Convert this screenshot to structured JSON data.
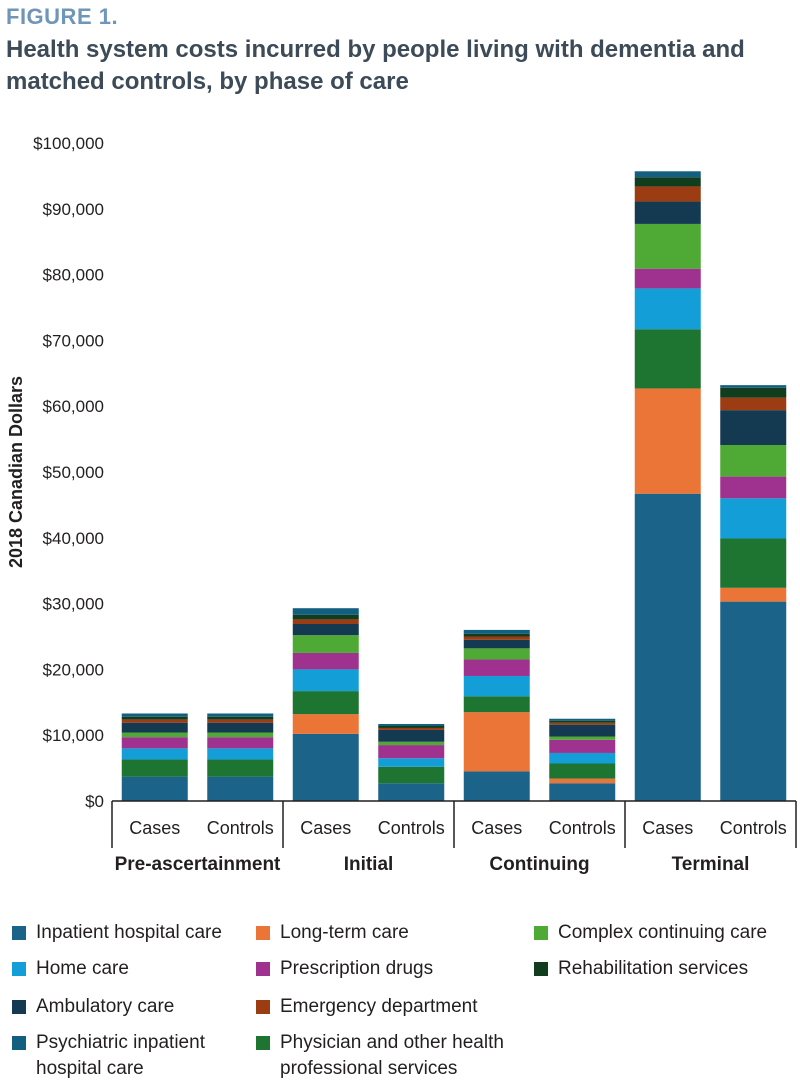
{
  "figure_label": "FIGURE 1.",
  "figure_title": "Health system costs incurred by people living with dementia and matched controls, by phase of care",
  "chart_data": {
    "type": "bar",
    "stacked": true,
    "ylabel": "2018 Canadian Dollars",
    "ylim": [
      0,
      100000
    ],
    "yticks": [
      {
        "value": 0,
        "label": "$0"
      },
      {
        "value": 10000,
        "label": "$10,000"
      },
      {
        "value": 20000,
        "label": "$20,000"
      },
      {
        "value": 30000,
        "label": "$30,000"
      },
      {
        "value": 40000,
        "label": "$40,000"
      },
      {
        "value": 50000,
        "label": "$50,000"
      },
      {
        "value": 60000,
        "label": "$60,000"
      },
      {
        "value": 70000,
        "label": "$70,000"
      },
      {
        "value": 80000,
        "label": "$80,000"
      },
      {
        "value": 90000,
        "label": "$90,000"
      },
      {
        "value": 100000,
        "label": "$100,000"
      }
    ],
    "groups": [
      {
        "name": "Pre-ascertainment",
        "categories": [
          "Cases",
          "Controls"
        ]
      },
      {
        "name": "Initial",
        "categories": [
          "Cases",
          "Controls"
        ]
      },
      {
        "name": "Continuing",
        "categories": [
          "Cases",
          "Controls"
        ]
      },
      {
        "name": "Terminal",
        "categories": [
          "Cases",
          "Controls"
        ]
      }
    ],
    "series": [
      {
        "name": "Inpatient hospital care",
        "color": "#1b6388",
        "values": [
          3700,
          3700,
          10200,
          2700,
          4500,
          2700,
          46700,
          30300
        ]
      },
      {
        "name": "Long-term care",
        "color": "#ea7536",
        "values": [
          0,
          0,
          3000,
          0,
          9000,
          700,
          16000,
          2100
        ]
      },
      {
        "name": "Physician and other health professional services",
        "color": "#1e7431",
        "values": [
          2600,
          2600,
          3500,
          2500,
          2400,
          2300,
          9000,
          7500
        ]
      },
      {
        "name": "Home care",
        "color": "#139ed8",
        "values": [
          1700,
          1700,
          3300,
          1300,
          3100,
          1600,
          6200,
          6100
        ]
      },
      {
        "name": "Prescription drugs",
        "color": "#a0328f",
        "values": [
          1700,
          1700,
          2500,
          2000,
          2500,
          2000,
          3000,
          3300
        ]
      },
      {
        "name": "Complex continuing care",
        "color": "#4fa935",
        "values": [
          700,
          700,
          2700,
          500,
          1700,
          500,
          6800,
          4800
        ]
      },
      {
        "name": "Ambulatory care",
        "color": "#143a52",
        "values": [
          1500,
          1500,
          1700,
          1800,
          1300,
          1800,
          3400,
          5300
        ]
      },
      {
        "name": "Emergency department",
        "color": "#9b3c13",
        "values": [
          500,
          500,
          700,
          300,
          500,
          300,
          2300,
          1900
        ]
      },
      {
        "name": "Rehabilitation services",
        "color": "#113d1e",
        "values": [
          400,
          400,
          700,
          300,
          400,
          300,
          1400,
          1500
        ]
      },
      {
        "name": "Psychiatric inpatient hospital care",
        "color": "#135f7f",
        "values": [
          500,
          500,
          1000,
          300,
          600,
          300,
          900,
          400
        ]
      }
    ]
  },
  "legend": {
    "items": [
      {
        "label": "Inpatient hospital care",
        "color": "#1b6388"
      },
      {
        "label": "Long-term care",
        "color": "#ea7536"
      },
      {
        "label": "Complex continuing care",
        "color": "#4fa935"
      },
      {
        "label": "Home care",
        "color": "#139ed8"
      },
      {
        "label": "Prescription drugs",
        "color": "#a0328f"
      },
      {
        "label": "Rehabilitation services",
        "color": "#113d1e"
      },
      {
        "label": "Ambulatory care",
        "color": "#143a52"
      },
      {
        "label": "Emergency department",
        "color": "#9b3c13"
      },
      {
        "label": "Psychiatric inpatient hospital care",
        "color": "#135f7f"
      },
      {
        "label": "Physician and other health professional services",
        "color": "#1e7431"
      }
    ]
  }
}
